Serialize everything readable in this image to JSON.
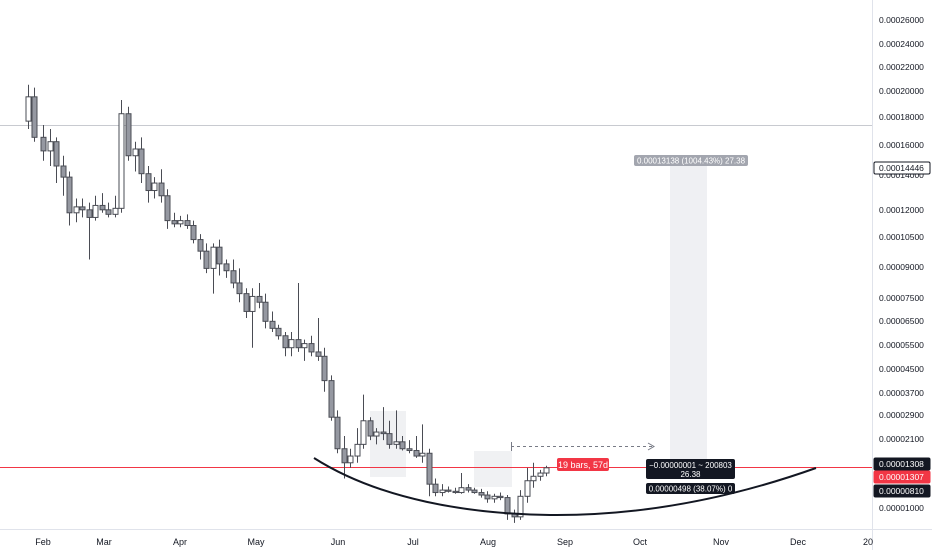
{
  "chart_data": {
    "type": "candlestick",
    "scale": "log",
    "grid": false,
    "x_axis": {
      "labels": [
        "Feb",
        "Mar",
        "Apr",
        "May",
        "Jun",
        "Jul",
        "Aug",
        "Sep",
        "Oct",
        "Nov",
        "Dec",
        "20"
      ]
    },
    "y_axis": {
      "tick_labels": [
        "0.00026000",
        "0.00024000",
        "0.00022000",
        "0.00020000",
        "0.00018000",
        "0.00016000",
        "0.00014000",
        "0.00012000",
        "0.00010500",
        "0.00009000",
        "0.00007500",
        "0.00006500",
        "0.00005500",
        "0.00004500",
        "0.00003700",
        "0.00002900",
        "0.00002100",
        "0.00001000"
      ]
    },
    "price_labels": [
      {
        "text": "0.00014446",
        "style": "outline"
      },
      {
        "text": "0.00001308",
        "style": "dark"
      },
      {
        "text": "0.00001307",
        "style": "red"
      },
      {
        "text": "0.00000810",
        "style": "dark"
      }
    ],
    "series": [
      {
        "date": "2021-01-25",
        "open": 0.000175,
        "high": 0.00023,
        "low": 0.000165,
        "close": 0.00021
      },
      {
        "date": "2021-01-28",
        "open": 0.00021,
        "high": 0.000225,
        "low": 0.00015,
        "close": 0.000155
      },
      {
        "date": "2021-02-01",
        "open": 0.000155,
        "high": 0.00017,
        "low": 0.00013,
        "close": 0.00014
      },
      {
        "date": "2021-02-04",
        "open": 0.00014,
        "high": 0.000165,
        "low": 0.000125,
        "close": 0.00015
      },
      {
        "date": "2021-02-07",
        "open": 0.00015,
        "high": 0.000155,
        "low": 0.00011,
        "close": 0.000125
      },
      {
        "date": "2021-02-10",
        "open": 0.000125,
        "high": 0.000135,
        "low": 0.0001,
        "close": 0.000115
      },
      {
        "date": "2021-02-13",
        "open": 0.000115,
        "high": 0.00012,
        "low": 8e-05,
        "close": 8.8e-05
      },
      {
        "date": "2021-02-16",
        "open": 8.8e-05,
        "high": 9.8e-05,
        "low": 8.2e-05,
        "close": 9.2e-05
      },
      {
        "date": "2021-02-19",
        "open": 9.2e-05,
        "high": 9.8e-05,
        "low": 8.5e-05,
        "close": 9e-05
      },
      {
        "date": "2021-02-22",
        "open": 9e-05,
        "high": 9.5e-05,
        "low": 6.2e-05,
        "close": 8.5e-05
      },
      {
        "date": "2021-02-25",
        "open": 8.5e-05,
        "high": 0.0001,
        "low": 8.3e-05,
        "close": 9.3e-05
      },
      {
        "date": "2021-02-28",
        "open": 9.3e-05,
        "high": 0.000102,
        "low": 8.8e-05,
        "close": 9e-05
      },
      {
        "date": "2021-03-03",
        "open": 9e-05,
        "high": 9.5e-05,
        "low": 8.5e-05,
        "close": 8.7e-05
      },
      {
        "date": "2021-03-06",
        "open": 8.7e-05,
        "high": 0.0001,
        "low": 8.5e-05,
        "close": 9.1e-05
      },
      {
        "date": "2021-03-09",
        "open": 9.1e-05,
        "high": 0.000205,
        "low": 8.8e-05,
        "close": 0.000185
      },
      {
        "date": "2021-03-12",
        "open": 0.000185,
        "high": 0.000195,
        "low": 0.00013,
        "close": 0.000135
      },
      {
        "date": "2021-03-15",
        "open": 0.000135,
        "high": 0.00015,
        "low": 0.00012,
        "close": 0.000142
      },
      {
        "date": "2021-03-18",
        "open": 0.000142,
        "high": 0.000155,
        "low": 0.00011,
        "close": 0.000118
      },
      {
        "date": "2021-03-21",
        "open": 0.000118,
        "high": 0.000125,
        "low": 9.5e-05,
        "close": 0.000104
      },
      {
        "date": "2021-03-24",
        "open": 0.000104,
        "high": 0.000115,
        "low": 9.8e-05,
        "close": 0.00011
      },
      {
        "date": "2021-03-27",
        "open": 0.00011,
        "high": 0.000122,
        "low": 9.5e-05,
        "close": 0.0001
      },
      {
        "date": "2021-03-30",
        "open": 0.0001,
        "high": 0.000105,
        "low": 7.8e-05,
        "close": 8.3e-05
      },
      {
        "date": "2021-04-02",
        "open": 8.3e-05,
        "high": 8.8e-05,
        "low": 7.9e-05,
        "close": 8.1e-05
      },
      {
        "date": "2021-04-05",
        "open": 8.1e-05,
        "high": 8.6e-05,
        "low": 7.9e-05,
        "close": 8.3e-05
      },
      {
        "date": "2021-04-08",
        "open": 8.3e-05,
        "high": 8.7e-05,
        "low": 7.8e-05,
        "close": 8e-05
      },
      {
        "date": "2021-04-11",
        "open": 8e-05,
        "high": 8.3e-05,
        "low": 7e-05,
        "close": 7.2e-05
      },
      {
        "date": "2021-04-14",
        "open": 7.2e-05,
        "high": 7.5e-05,
        "low": 6.2e-05,
        "close": 6.6e-05
      },
      {
        "date": "2021-04-17",
        "open": 6.6e-05,
        "high": 7e-05,
        "low": 5.6e-05,
        "close": 5.8e-05
      },
      {
        "date": "2021-04-20",
        "open": 5.8e-05,
        "high": 7e-05,
        "low": 4.8e-05,
        "close": 6.8e-05
      },
      {
        "date": "2021-04-23",
        "open": 6.8e-05,
        "high": 7.2e-05,
        "low": 5.5e-05,
        "close": 6e-05
      },
      {
        "date": "2021-04-26",
        "open": 6e-05,
        "high": 6.2e-05,
        "low": 5.4e-05,
        "close": 5.7e-05
      },
      {
        "date": "2021-04-29",
        "open": 5.7e-05,
        "high": 6.2e-05,
        "low": 5e-05,
        "close": 5.2e-05
      },
      {
        "date": "2021-05-02",
        "open": 5.2e-05,
        "high": 5.8e-05,
        "low": 4.5e-05,
        "close": 4.8e-05
      },
      {
        "date": "2021-05-05",
        "open": 4.8e-05,
        "high": 5e-05,
        "low": 4e-05,
        "close": 4.2e-05
      },
      {
        "date": "2021-05-08",
        "open": 4.2e-05,
        "high": 5e-05,
        "low": 3.2e-05,
        "close": 4.7e-05
      },
      {
        "date": "2021-05-11",
        "open": 4.7e-05,
        "high": 5.2e-05,
        "low": 4.3e-05,
        "close": 4.5e-05
      },
      {
        "date": "2021-05-14",
        "open": 4.5e-05,
        "high": 4.8e-05,
        "low": 3.7e-05,
        "close": 3.9e-05
      },
      {
        "date": "2021-05-17",
        "open": 3.9e-05,
        "high": 4.2e-05,
        "low": 3.6e-05,
        "close": 3.7e-05
      },
      {
        "date": "2021-05-20",
        "open": 3.7e-05,
        "high": 3.8e-05,
        "low": 3.4e-05,
        "close": 3.5e-05
      },
      {
        "date": "2021-05-23",
        "open": 3.5e-05,
        "high": 3.6e-05,
        "low": 3e-05,
        "close": 3.2e-05
      },
      {
        "date": "2021-05-26",
        "open": 3.2e-05,
        "high": 3.6e-05,
        "low": 3e-05,
        "close": 3.4e-05
      },
      {
        "date": "2021-05-29",
        "open": 3.4e-05,
        "high": 5.2e-05,
        "low": 3.1e-05,
        "close": 3.2e-05
      },
      {
        "date": "2021-06-01",
        "open": 3.2e-05,
        "high": 3.4e-05,
        "low": 2.9e-05,
        "close": 3.3e-05
      },
      {
        "date": "2021-06-04",
        "open": 3.3e-05,
        "high": 3.5e-05,
        "low": 3e-05,
        "close": 3.1e-05
      },
      {
        "date": "2021-06-07",
        "open": 3.1e-05,
        "high": 4e-05,
        "low": 2.9e-05,
        "close": 3e-05
      },
      {
        "date": "2021-06-10",
        "open": 3e-05,
        "high": 3.2e-05,
        "low": 2.3e-05,
        "close": 2.5e-05
      },
      {
        "date": "2021-06-13",
        "open": 2.5e-05,
        "high": 2.6e-05,
        "low": 1.85e-05,
        "close": 1.9e-05
      },
      {
        "date": "2021-06-16",
        "open": 1.9e-05,
        "high": 2e-05,
        "low": 1.45e-05,
        "close": 1.5e-05
      },
      {
        "date": "2021-06-19",
        "open": 1.5e-05,
        "high": 1.65e-05,
        "low": 1.2e-05,
        "close": 1.35e-05
      },
      {
        "date": "2021-06-22",
        "open": 1.35e-05,
        "high": 1.5e-05,
        "low": 1.3e-05,
        "close": 1.42e-05
      },
      {
        "date": "2021-06-25",
        "open": 1.42e-05,
        "high": 1.75e-05,
        "low": 1.35e-05,
        "close": 1.55e-05
      },
      {
        "date": "2021-06-28",
        "open": 1.55e-05,
        "high": 2.25e-05,
        "low": 1.5e-05,
        "close": 1.85e-05
      },
      {
        "date": "2021-07-01",
        "open": 1.85e-05,
        "high": 1.9e-05,
        "low": 1.6e-05,
        "close": 1.65e-05
      },
      {
        "date": "2021-07-04",
        "open": 1.65e-05,
        "high": 1.75e-05,
        "low": 1.55e-05,
        "close": 1.7e-05
      },
      {
        "date": "2021-07-07",
        "open": 1.7e-05,
        "high": 2.05e-05,
        "low": 1.6e-05,
        "close": 1.68e-05
      },
      {
        "date": "2021-07-10",
        "open": 1.68e-05,
        "high": 1.85e-05,
        "low": 1.5e-05,
        "close": 1.55e-05
      },
      {
        "date": "2021-07-13",
        "open": 1.55e-05,
        "high": 2e-05,
        "low": 1.5e-05,
        "close": 1.58e-05
      },
      {
        "date": "2021-07-16",
        "open": 1.58e-05,
        "high": 1.65e-05,
        "low": 1.48e-05,
        "close": 1.5e-05
      },
      {
        "date": "2021-07-19",
        "open": 1.5e-05,
        "high": 1.6e-05,
        "low": 1.45e-05,
        "close": 1.48e-05
      },
      {
        "date": "2021-07-22",
        "open": 1.48e-05,
        "high": 1.65e-05,
        "low": 1.4e-05,
        "close": 1.42e-05
      },
      {
        "date": "2021-07-25",
        "open": 1.42e-05,
        "high": 1.8e-05,
        "low": 1.35e-05,
        "close": 1.45e-05
      },
      {
        "date": "2021-07-28",
        "open": 1.45e-05,
        "high": 1.5e-05,
        "low": 1.05e-05,
        "close": 1.15e-05
      },
      {
        "date": "2021-07-31",
        "open": 1.15e-05,
        "high": 1.2e-05,
        "low": 1.05e-05,
        "close": 1.08e-05
      },
      {
        "date": "2021-08-03",
        "open": 1.08e-05,
        "high": 1.15e-05,
        "low": 1.05e-05,
        "close": 1.1e-05
      },
      {
        "date": "2021-08-06",
        "open": 1.1e-05,
        "high": 1.13e-05,
        "low": 1.08e-05,
        "close": 1.09e-05
      },
      {
        "date": "2021-08-09",
        "open": 1.09e-05,
        "high": 1.12e-05,
        "low": 1.07e-05,
        "close": 1.08e-05
      },
      {
        "date": "2021-08-12",
        "open": 1.08e-05,
        "high": 1.25e-05,
        "low": 1.07e-05,
        "close": 1.12e-05
      },
      {
        "date": "2021-08-15",
        "open": 1.12e-05,
        "high": 1.15e-05,
        "low": 1.08e-05,
        "close": 1.1e-05
      },
      {
        "date": "2021-08-18",
        "open": 1.1e-05,
        "high": 1.12e-05,
        "low": 1.07e-05,
        "close": 1.08e-05
      },
      {
        "date": "2021-08-21",
        "open": 1.08e-05,
        "high": 1.11e-05,
        "low": 1.04e-05,
        "close": 1.06e-05
      },
      {
        "date": "2021-08-24",
        "open": 1.06e-05,
        "high": 1.09e-05,
        "low": 1e-05,
        "close": 1.03e-05
      },
      {
        "date": "2021-08-27",
        "open": 1.03e-05,
        "high": 1.07e-05,
        "low": 1e-05,
        "close": 1.05e-05
      },
      {
        "date": "2021-08-30",
        "open": 1.05e-05,
        "high": 1.08e-05,
        "low": 1.02e-05,
        "close": 1.04e-05
      },
      {
        "date": "2021-09-02",
        "open": 1.04e-05,
        "high": 1.06e-05,
        "low": 8.8e-06,
        "close": 9.2e-06
      },
      {
        "date": "2021-09-05",
        "open": 9.2e-06,
        "high": 9.5e-06,
        "low": 8.6e-06,
        "close": 9e-06
      },
      {
        "date": "2021-09-08",
        "open": 9e-06,
        "high": 1.1e-05,
        "low": 8.8e-06,
        "close": 1.05e-05
      },
      {
        "date": "2021-09-11",
        "open": 1.05e-05,
        "high": 1.3e-05,
        "low": 1e-05,
        "close": 1.18e-05
      },
      {
        "date": "2021-09-14",
        "open": 1.18e-05,
        "high": 1.35e-05,
        "low": 1.12e-05,
        "close": 1.22e-05
      },
      {
        "date": "2021-09-17",
        "open": 1.22e-05,
        "high": 1.28e-05,
        "low": 1.18e-05,
        "close": 1.25e-05
      },
      {
        "date": "2021-09-20",
        "open": 1.25e-05,
        "high": 1.32e-05,
        "low": 1.22e-05,
        "close": 1.3e-05
      }
    ]
  }
}
